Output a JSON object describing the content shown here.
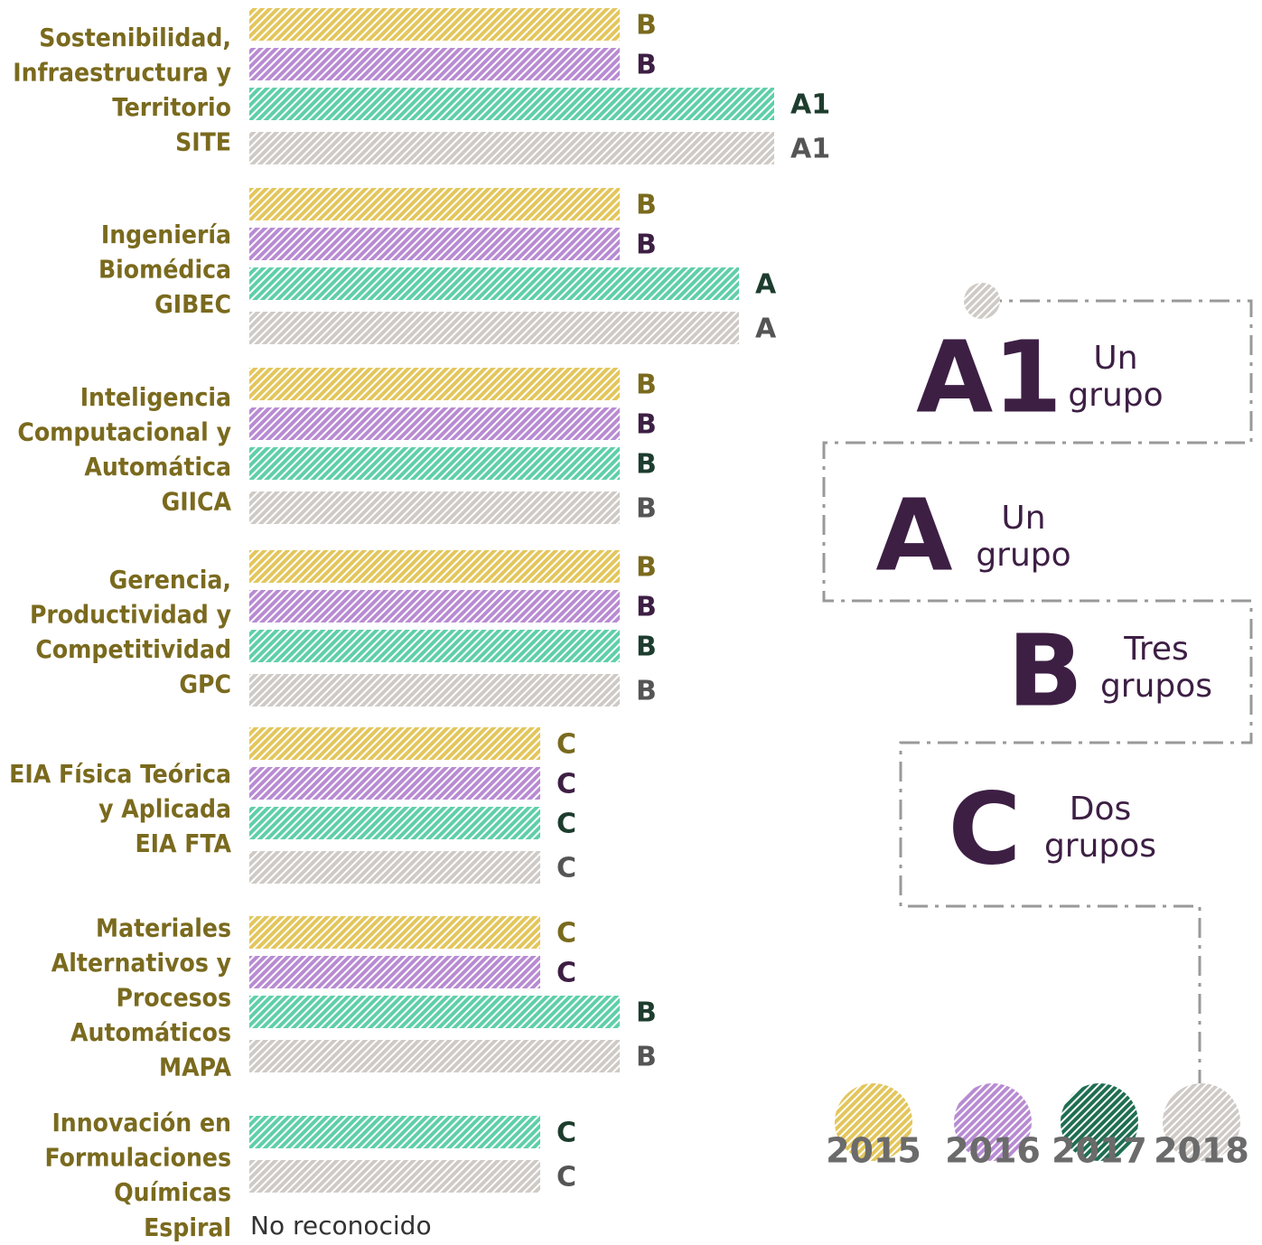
{
  "years": [
    {
      "label": "2015",
      "color": "#e3c65c",
      "dot_color": "#e3c65c",
      "text_color": "#7a6a1e"
    },
    {
      "label": "2016",
      "color": "#b88bd2",
      "dot_color": "#b88bd2",
      "text_color": "#3d1f44"
    },
    {
      "label": "2017",
      "color": "#5fcfa9",
      "dot_color": "#1f6e52",
      "text_color": "#1d3d2e"
    },
    {
      "label": "2018",
      "color": "#cfcac6",
      "dot_color": "#cfcac6",
      "text_color": "#555555"
    }
  ],
  "groups": [
    {
      "label": [
        "Sostenibilidad,",
        "Infraestructura y",
        "Territorio",
        "SITE"
      ],
      "grades": [
        "B",
        "B",
        "A1",
        "A1"
      ]
    },
    {
      "label": [
        "Ingeniería",
        "Biomédica",
        "GIBEC"
      ],
      "grades": [
        "B",
        "B",
        "A",
        "A"
      ]
    },
    {
      "label": [
        "Inteligencia",
        "Computacional y",
        "Automática",
        "GIICA"
      ],
      "grades": [
        "B",
        "B",
        "B",
        "B"
      ]
    },
    {
      "label": [
        "Gerencia,",
        "Productividad y",
        "Competitividad",
        "GPC"
      ],
      "grades": [
        "B",
        "B",
        "B",
        "B"
      ]
    },
    {
      "label": [
        "EIA Física Teórica",
        "y Aplicada",
        "EIA FTA"
      ],
      "grades": [
        "C",
        "C",
        "C",
        "C"
      ]
    },
    {
      "label": [
        "Materiales",
        "Alternativos y",
        "Procesos",
        "Automáticos",
        "MAPA"
      ],
      "grades": [
        "C",
        "C",
        "B",
        "B"
      ]
    },
    {
      "label": [
        "Innovación en",
        "Formulaciones",
        "Químicas"
      ],
      "grades": [
        null,
        null,
        "C",
        "C"
      ]
    }
  ],
  "unranked": {
    "label": "Espiral",
    "note": "No reconocido"
  },
  "levels": [
    {
      "grade": "A1",
      "desc": [
        "Un",
        "grupo"
      ]
    },
    {
      "grade": "A",
      "desc": [
        "Un",
        "grupo"
      ]
    },
    {
      "grade": "B",
      "desc": [
        "Tres",
        "grupos"
      ]
    },
    {
      "grade": "C",
      "desc": [
        "Dos",
        "grupos"
      ]
    }
  ]
}
